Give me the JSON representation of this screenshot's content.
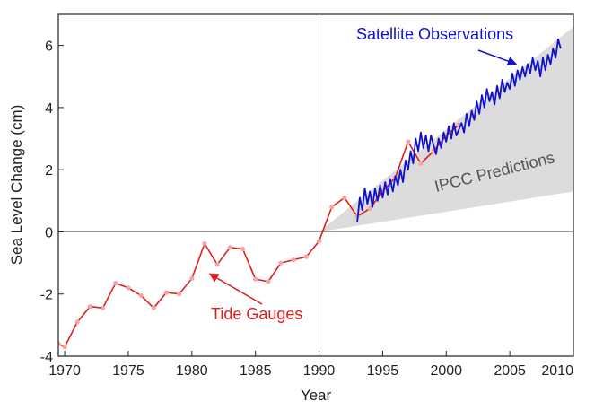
{
  "chart_data": {
    "type": "line",
    "title": "",
    "xlabel": "Year",
    "ylabel": "Sea Level Change (cm)",
    "xlim": [
      1969.5,
      2010
    ],
    "ylim": [
      -4,
      7
    ],
    "xticks": [
      1970,
      1975,
      1980,
      1985,
      1990,
      1995,
      2000,
      2005,
      2010
    ],
    "yticks": [
      -4,
      -2,
      0,
      2,
      4,
      6
    ],
    "reference_lines": {
      "x": 1990,
      "y": 0
    },
    "colors": {
      "tide": "#dd1e1e",
      "tide_marker": "#f3a6a6",
      "satellite": "#1111cc",
      "ipcc_band": "#dcdcdc",
      "ipcc_text": "#555555"
    },
    "series": [
      {
        "key": "tide",
        "name": "Tide Gauges",
        "x": [
          1969.5,
          1970,
          1971,
          1972,
          1973,
          1974,
          1975,
          1976,
          1977,
          1978,
          1979,
          1980,
          1981,
          1982,
          1983,
          1984,
          1985,
          1986,
          1987,
          1988,
          1989,
          1990,
          1991,
          1992,
          1993,
          1994,
          1995,
          1996,
          1997,
          1998,
          1999,
          2000,
          2001
        ],
        "y": [
          -3.6,
          -3.7,
          -2.9,
          -2.4,
          -2.45,
          -1.65,
          -1.8,
          -2.05,
          -2.45,
          -1.95,
          -2.0,
          -1.5,
          -0.38,
          -1.05,
          -0.5,
          -0.55,
          -1.52,
          -1.6,
          -1.0,
          -0.9,
          -0.8,
          -0.3,
          0.8,
          1.1,
          0.5,
          0.75,
          1.3,
          1.75,
          2.9,
          2.2,
          2.6,
          3.1,
          3.45
        ]
      },
      {
        "key": "satellite",
        "name": "Satellite Observations",
        "x": [
          1993.0,
          1993.2,
          1993.4,
          1993.6,
          1993.8,
          1994.0,
          1994.2,
          1994.4,
          1994.6,
          1994.8,
          1995.0,
          1995.2,
          1995.4,
          1995.6,
          1995.8,
          1996.0,
          1996.2,
          1996.4,
          1996.6,
          1996.8,
          1997.0,
          1997.2,
          1997.4,
          1997.6,
          1997.8,
          1998.0,
          1998.2,
          1998.4,
          1998.6,
          1998.8,
          1999.0,
          1999.2,
          1999.4,
          1999.6,
          1999.8,
          2000.0,
          2000.2,
          2000.4,
          2000.6,
          2000.8,
          2001.0,
          2001.2,
          2001.4,
          2001.6,
          2001.8,
          2002.0,
          2002.2,
          2002.4,
          2002.6,
          2002.8,
          2003.0,
          2003.2,
          2003.4,
          2003.6,
          2003.8,
          2004.0,
          2004.2,
          2004.4,
          2004.6,
          2004.8,
          2005.0,
          2005.2,
          2005.4,
          2005.6,
          2005.8,
          2006.0,
          2006.2,
          2006.4,
          2006.6,
          2006.8,
          2007.0,
          2007.2,
          2007.4,
          2007.6,
          2007.8,
          2008.0,
          2008.2,
          2008.4,
          2008.6,
          2008.8,
          2009.0
        ],
        "y": [
          0.3,
          1.1,
          0.7,
          1.4,
          0.9,
          1.3,
          0.8,
          1.4,
          1.0,
          1.5,
          1.1,
          1.6,
          1.2,
          1.7,
          1.3,
          1.8,
          1.5,
          2.0,
          1.6,
          2.3,
          2.0,
          2.6,
          2.2,
          3.0,
          2.6,
          3.2,
          2.7,
          3.1,
          2.6,
          3.1,
          2.8,
          2.5,
          3.0,
          2.7,
          3.2,
          2.9,
          3.4,
          3.0,
          3.5,
          3.1,
          3.3,
          3.5,
          3.2,
          3.8,
          3.4,
          3.9,
          3.6,
          4.2,
          3.8,
          4.4,
          4.0,
          4.6,
          4.2,
          4.5,
          4.1,
          4.7,
          4.3,
          4.9,
          4.5,
          4.8,
          4.6,
          5.1,
          4.7,
          5.2,
          4.9,
          5.3,
          5.0,
          5.4,
          5.1,
          5.6,
          5.2,
          5.5,
          5.0,
          5.6,
          5.2,
          5.7,
          5.4,
          5.9,
          5.6,
          6.2,
          5.9
        ]
      }
    ],
    "bands": [
      {
        "key": "ipcc",
        "name": "IPCC Predictions",
        "x": [
          1990,
          2010
        ],
        "lower": [
          0,
          1.3
        ],
        "upper": [
          0,
          6.6
        ]
      }
    ],
    "annotations": [
      {
        "key": "tide",
        "text": "Tide Gauges",
        "arrow_to": [
          1981.4,
          -1.35
        ]
      },
      {
        "key": "satellite",
        "text": "Satellite Observations",
        "arrow_to": [
          2005.5,
          5.4
        ]
      },
      {
        "key": "ipcc",
        "text": "IPCC Predictions"
      }
    ]
  }
}
